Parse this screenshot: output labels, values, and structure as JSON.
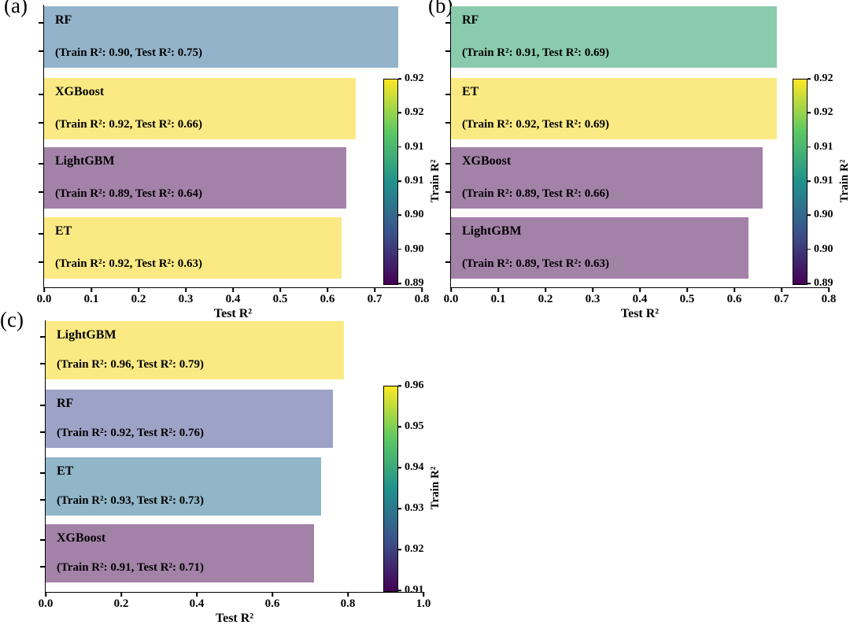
{
  "panels": [
    {
      "label": "(a)",
      "xlabel": "Test R²",
      "x_max": 0.8,
      "x_ticks": [
        "0.0",
        "0.1",
        "0.2",
        "0.3",
        "0.4",
        "0.5",
        "0.6",
        "0.7",
        "0.8"
      ],
      "colorbar": {
        "label": "Train R²",
        "ticks": [
          "0.92",
          "0.92",
          "0.91",
          "0.91",
          "0.90",
          "0.90",
          "0.89"
        ],
        "range": [
          0.89,
          0.92
        ],
        "gradient": [
          "#fde725",
          "#5ec962",
          "#21918c",
          "#3b528b",
          "#440154"
        ]
      },
      "bars": [
        {
          "model": "RF",
          "annotation": "(Train R²: 0.90, Test R²: 0.75)",
          "train_r2": 0.9,
          "test_r2": 0.75,
          "color": "#93b3cb"
        },
        {
          "model": "XGBoost",
          "annotation": "(Train R²: 0.92, Test R²: 0.66)",
          "train_r2": 0.92,
          "test_r2": 0.66,
          "color": "#fbea83"
        },
        {
          "model": "LightGBM",
          "annotation": "(Train R²: 0.89, Test R²: 0.64)",
          "train_r2": 0.89,
          "test_r2": 0.64,
          "color": "#a382a8"
        },
        {
          "model": "ET",
          "annotation": "(Train R²: 0.92, Test R²: 0.63)",
          "train_r2": 0.92,
          "test_r2": 0.63,
          "color": "#fbea83"
        }
      ]
    },
    {
      "label": "(b)",
      "xlabel": "Test R²",
      "x_max": 0.8,
      "x_ticks": [
        "0.0",
        "0.1",
        "0.2",
        "0.3",
        "0.4",
        "0.5",
        "0.6",
        "0.7",
        "0.8"
      ],
      "colorbar": {
        "label": "Train R²",
        "ticks": [
          "0.92",
          "0.92",
          "0.91",
          "0.91",
          "0.90",
          "0.90",
          "0.89"
        ],
        "range": [
          0.89,
          0.92
        ],
        "gradient": [
          "#fde725",
          "#5ec962",
          "#21918c",
          "#3b528b",
          "#440154"
        ]
      },
      "bars": [
        {
          "model": "RF",
          "annotation": "(Train R²: 0.91, Test R²: 0.69)",
          "train_r2": 0.91,
          "test_r2": 0.69,
          "color": "#8acbad"
        },
        {
          "model": "ET",
          "annotation": "(Train R²: 0.92, Test R²: 0.69)",
          "train_r2": 0.92,
          "test_r2": 0.69,
          "color": "#fbea83"
        },
        {
          "model": "XGBoost",
          "annotation": "(Train R²: 0.89, Test R²: 0.66)",
          "train_r2": 0.89,
          "test_r2": 0.66,
          "color": "#a382a8"
        },
        {
          "model": "LightGBM",
          "annotation": "(Train R²: 0.89, Test R²: 0.63)",
          "train_r2": 0.89,
          "test_r2": 0.63,
          "color": "#a382a8"
        }
      ]
    },
    {
      "label": "(c)",
      "xlabel": "Test R²",
      "x_max": 1.0,
      "x_ticks": [
        "0.0",
        "0.2",
        "0.4",
        "0.6",
        "0.8",
        "1.0"
      ],
      "colorbar": {
        "label": "Train R²",
        "ticks": [
          "0.96",
          "0.95",
          "0.94",
          "0.93",
          "0.92",
          "0.91"
        ],
        "range": [
          0.91,
          0.96
        ],
        "gradient": [
          "#fde725",
          "#5ec962",
          "#21918c",
          "#3b528b",
          "#440154"
        ]
      },
      "bars": [
        {
          "model": "LightGBM",
          "annotation": "(Train R²: 0.96, Test R²: 0.79)",
          "train_r2": 0.96,
          "test_r2": 0.79,
          "color": "#fbea83"
        },
        {
          "model": "RF",
          "annotation": "(Train R²: 0.92, Test R²: 0.76)",
          "train_r2": 0.92,
          "test_r2": 0.76,
          "color": "#9da3c6"
        },
        {
          "model": "ET",
          "annotation": "(Train R²: 0.93, Test R²: 0.73)",
          "train_r2": 0.93,
          "test_r2": 0.73,
          "color": "#90b6c8"
        },
        {
          "model": "XGBoost",
          "annotation": "(Train R²: 0.91, Test R²: 0.71)",
          "train_r2": 0.91,
          "test_r2": 0.71,
          "color": "#a382a8"
        }
      ]
    }
  ],
  "chart_data": [
    {
      "type": "bar",
      "orientation": "horizontal",
      "title": "(a)",
      "categories": [
        "RF",
        "XGBoost",
        "LightGBM",
        "ET"
      ],
      "series": [
        {
          "name": "Test R²",
          "values": [
            0.75,
            0.66,
            0.64,
            0.63
          ]
        },
        {
          "name": "Train R² (bar color scale)",
          "values": [
            0.9,
            0.92,
            0.89,
            0.92
          ]
        }
      ],
      "xlabel": "Test R²",
      "xlim": [
        0.0,
        0.8
      ],
      "grid": false,
      "colorbar": {
        "label": "Train R²",
        "range": [
          0.89,
          0.92
        ],
        "colormap": "viridis"
      }
    },
    {
      "type": "bar",
      "orientation": "horizontal",
      "title": "(b)",
      "categories": [
        "RF",
        "ET",
        "XGBoost",
        "LightGBM"
      ],
      "series": [
        {
          "name": "Test R²",
          "values": [
            0.69,
            0.69,
            0.66,
            0.63
          ]
        },
        {
          "name": "Train R² (bar color scale)",
          "values": [
            0.91,
            0.92,
            0.89,
            0.89
          ]
        }
      ],
      "xlabel": "Test R²",
      "xlim": [
        0.0,
        0.8
      ],
      "grid": false,
      "colorbar": {
        "label": "Train R²",
        "range": [
          0.89,
          0.92
        ],
        "colormap": "viridis"
      }
    },
    {
      "type": "bar",
      "orientation": "horizontal",
      "title": "(c)",
      "categories": [
        "LightGBM",
        "RF",
        "ET",
        "XGBoost"
      ],
      "series": [
        {
          "name": "Test R²",
          "values": [
            0.79,
            0.76,
            0.73,
            0.71
          ]
        },
        {
          "name": "Train R² (bar color scale)",
          "values": [
            0.96,
            0.92,
            0.93,
            0.91
          ]
        }
      ],
      "xlabel": "Test R²",
      "xlim": [
        0.0,
        1.0
      ],
      "grid": false,
      "colorbar": {
        "label": "Train R²",
        "range": [
          0.91,
          0.96
        ],
        "colormap": "viridis"
      }
    }
  ]
}
